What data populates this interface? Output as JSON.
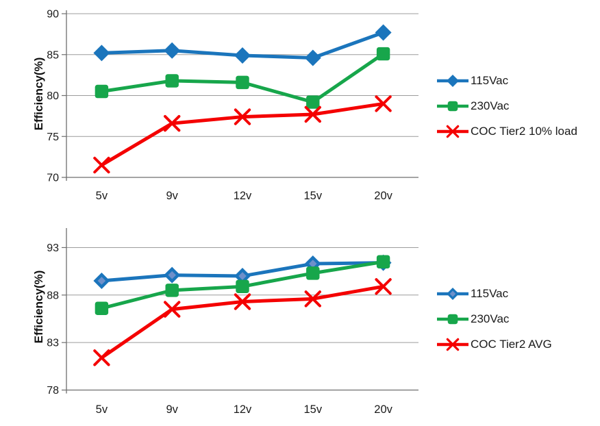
{
  "page": {
    "background": "#ffffff"
  },
  "colors": {
    "series_blue": "#1B75BC",
    "series_green": "#17A64B",
    "series_red": "#F40000",
    "diamond_inner_highlight": "#7893CB",
    "gridline": "#9C9C9C",
    "axis": "#6E6E6E",
    "tick_text": "#1A1A1A"
  },
  "chart_data": [
    {
      "id": "efficiency-10pct-load-chart",
      "type": "line",
      "title": "",
      "xlabel": "",
      "ylabel": "Efficiency(%)",
      "categories": [
        "5v",
        "9v",
        "12v",
        "15v",
        "20v"
      ],
      "y_axis": {
        "min": 70,
        "max": 90,
        "major_unit": 5,
        "ticks": [
          90,
          85,
          80,
          75,
          70
        ]
      },
      "grid": true,
      "legend_position": "right",
      "series": [
        {
          "name": "115Vac",
          "color": "#1B75BC",
          "marker": "diamond",
          "values": [
            85.2,
            85.5,
            84.9,
            84.6,
            87.7
          ]
        },
        {
          "name": "230Vac",
          "color": "#17A64B",
          "marker": "square",
          "values": [
            80.5,
            81.8,
            81.6,
            79.2,
            85.1
          ]
        },
        {
          "name": "COC Tier2 10% load",
          "color": "#F40000",
          "marker": "x",
          "values": [
            71.5,
            76.6,
            77.4,
            77.7,
            79.0
          ]
        }
      ]
    },
    {
      "id": "efficiency-avg-chart",
      "type": "line",
      "title": "",
      "xlabel": "",
      "ylabel": "Efficiency(%)",
      "categories": [
        "5v",
        "9v",
        "12v",
        "15v",
        "20v"
      ],
      "y_axis": {
        "min": 78,
        "max": 95,
        "major_unit": 5,
        "ticks": [
          93,
          88,
          83,
          78
        ]
      },
      "grid": true,
      "legend_position": "right",
      "series": [
        {
          "name": "115Vac",
          "color": "#1B75BC",
          "marker": "diamond-light",
          "values": [
            89.5,
            90.1,
            90.0,
            91.3,
            91.4
          ]
        },
        {
          "name": "230Vac",
          "color": "#17A64B",
          "marker": "square",
          "values": [
            86.6,
            88.5,
            88.9,
            90.3,
            91.5
          ]
        },
        {
          "name": "COC Tier2 AVG",
          "color": "#F40000",
          "marker": "x",
          "values": [
            81.4,
            86.5,
            87.3,
            87.6,
            88.9
          ]
        }
      ]
    }
  ]
}
